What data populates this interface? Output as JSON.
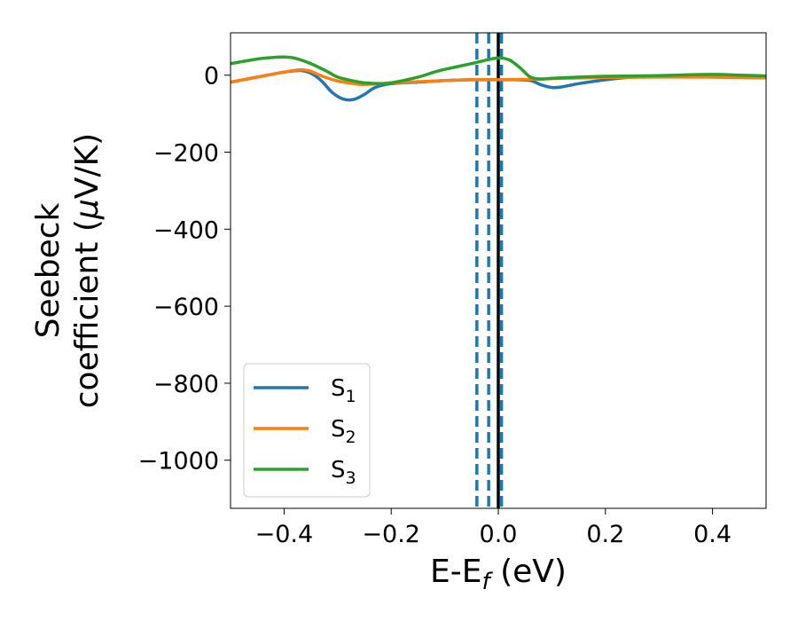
{
  "chart_data": {
    "type": "line",
    "xlabel": "E-E_f (eV)",
    "ylabel_line1": "Seebeck",
    "ylabel_line2": "coefficient  (μV/K)",
    "xlim": [
      -0.5,
      0.5
    ],
    "ylim": [
      -1125,
      110
    ],
    "xticks": [
      -0.4,
      -0.2,
      0.0,
      0.2,
      0.4
    ],
    "xtick_labels": [
      "−0.4",
      "−0.2",
      "0.0",
      "0.2",
      "0.4"
    ],
    "yticks": [
      0,
      -200,
      -400,
      -600,
      -800,
      -1000
    ],
    "ytick_labels": [
      "0",
      "−200",
      "−400",
      "−600",
      "−800",
      "−1000"
    ],
    "grid": false,
    "legend_position": "lower-left",
    "series": [
      {
        "name": "S1",
        "color": "#1f77b4",
        "x": [
          -0.5,
          -0.45,
          -0.4,
          -0.37,
          -0.35,
          -0.33,
          -0.31,
          -0.29,
          -0.27,
          -0.25,
          -0.23,
          -0.2,
          -0.15,
          -0.1,
          -0.05,
          0.0,
          0.03,
          0.06,
          0.08,
          0.1,
          0.12,
          0.15,
          0.2,
          0.25,
          0.3,
          0.35,
          0.4,
          0.45,
          0.5
        ],
        "y": [
          -18,
          -5,
          8,
          12,
          5,
          -15,
          -45,
          -62,
          -63,
          -50,
          -32,
          -22,
          -18,
          -14,
          -12,
          -12,
          -12,
          -14,
          -25,
          -32,
          -30,
          -22,
          -12,
          -5,
          -3,
          -4,
          -5,
          -6,
          -7
        ]
      },
      {
        "name": "S2",
        "color": "#ff7f0e",
        "x": [
          -0.5,
          -0.45,
          -0.4,
          -0.37,
          -0.35,
          -0.33,
          -0.3,
          -0.27,
          -0.25,
          -0.22,
          -0.2,
          -0.15,
          -0.1,
          -0.05,
          0.0,
          0.05,
          0.1,
          0.2,
          0.3,
          0.4,
          0.5
        ],
        "y": [
          -18,
          -5,
          8,
          14,
          10,
          -2,
          -15,
          -22,
          -24,
          -22,
          -20,
          -17,
          -14,
          -12,
          -12,
          -11,
          -9,
          -6,
          -5,
          -5,
          -7
        ]
      },
      {
        "name": "S3",
        "color": "#2ca02c",
        "x": [
          -0.5,
          -0.45,
          -0.42,
          -0.4,
          -0.38,
          -0.35,
          -0.32,
          -0.3,
          -0.27,
          -0.25,
          -0.22,
          -0.2,
          -0.15,
          -0.12,
          -0.1,
          -0.05,
          -0.02,
          0.0,
          0.02,
          0.04,
          0.06,
          0.08,
          0.1,
          0.15,
          0.2,
          0.3,
          0.4,
          0.45,
          0.5
        ],
        "y": [
          30,
          42,
          46,
          47,
          44,
          30,
          10,
          -5,
          -15,
          -20,
          -22,
          -20,
          -5,
          8,
          15,
          30,
          40,
          45,
          40,
          20,
          -5,
          -10,
          -8,
          -5,
          -3,
          -1,
          2,
          0,
          -2
        ]
      }
    ],
    "vlines": [
      {
        "x": -0.04,
        "color": "#1f77b4",
        "style": "dashed"
      },
      {
        "x": -0.018,
        "color": "#1f77b4",
        "style": "dashed"
      },
      {
        "x": 0.006,
        "color": "#1f77b4",
        "style": "dashed"
      },
      {
        "x": 0.0,
        "color": "#000000",
        "style": "solid"
      }
    ]
  }
}
